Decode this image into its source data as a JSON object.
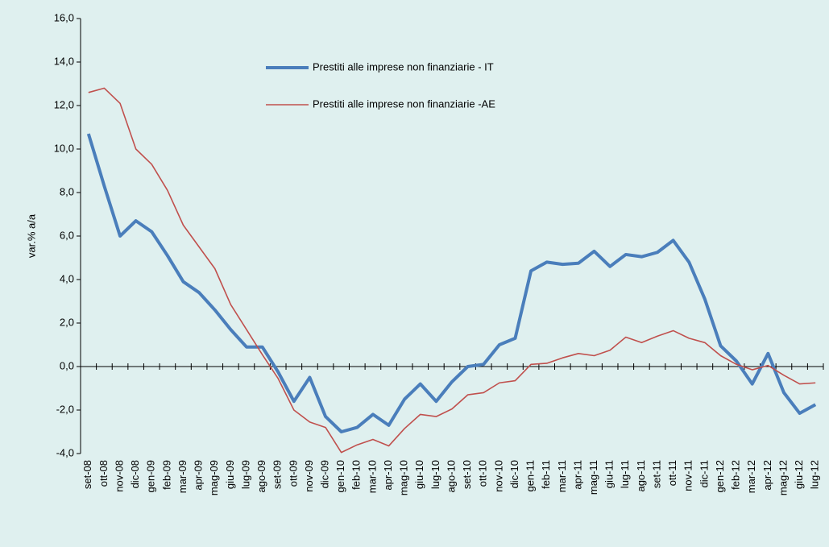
{
  "chart_data": {
    "type": "line",
    "y_label": "var.%  a/a",
    "categories": [
      "set-08",
      "ott-08",
      "nov-08",
      "dic-08",
      "gen-09",
      "feb-09",
      "mar-09",
      "apr-09",
      "mag-09",
      "giu-09",
      "lug-09",
      "ago-09",
      "set-09",
      "ott-09",
      "nov-09",
      "dic-09",
      "gen-10",
      "feb-10",
      "mar-10",
      "apr-10",
      "mag-10",
      "giu-10",
      "lug-10",
      "ago-10",
      "set-10",
      "ott-10",
      "nov-10",
      "dic-10",
      "gen-11",
      "feb-11",
      "mar-11",
      "apr-11",
      "mag-11",
      "giu-11",
      "lug-11",
      "ago-11",
      "set-11",
      "ott-11",
      "nov-11",
      "dic-11",
      "gen-12",
      "feb-12",
      "mar-12",
      "apr-12",
      "mag-12",
      "giu-12",
      "lug-12"
    ],
    "series": [
      {
        "name": "Prestiti alle imprese non finanziarie - IT",
        "color": "#4a7ebb",
        "width": 4,
        "values": [
          10.7,
          8.3,
          6.0,
          6.7,
          6.2,
          5.1,
          3.9,
          3.4,
          2.6,
          1.7,
          0.9,
          0.9,
          -0.25,
          -1.6,
          -0.5,
          -2.3,
          -3.0,
          -2.8,
          -2.2,
          -2.7,
          -1.5,
          -0.8,
          -1.6,
          -0.7,
          0.0,
          0.1,
          1.0,
          1.3,
          4.4,
          4.8,
          4.7,
          4.75,
          5.3,
          4.6,
          5.15,
          5.05,
          5.25,
          5.8,
          4.8,
          3.1,
          0.95,
          0.25,
          -0.8,
          0.6,
          -1.2,
          -2.15,
          -1.75
        ]
      },
      {
        "name": "Prestiti alle imprese non finanziarie -AE",
        "color": "#c0504d",
        "width": 1.6,
        "values": [
          12.6,
          12.8,
          12.1,
          10.0,
          9.3,
          8.1,
          6.5,
          5.5,
          4.5,
          2.85,
          1.7,
          0.55,
          -0.55,
          -2.0,
          -2.55,
          -2.8,
          -3.95,
          -3.6,
          -3.35,
          -3.65,
          -2.85,
          -2.2,
          -2.3,
          -1.95,
          -1.3,
          -1.2,
          -0.75,
          -0.65,
          0.1,
          0.15,
          0.4,
          0.6,
          0.5,
          0.75,
          1.35,
          1.1,
          1.4,
          1.65,
          1.3,
          1.1,
          0.5,
          0.1,
          -0.15,
          0.05,
          -0.4,
          -0.8,
          -0.75
        ]
      }
    ],
    "ylim": [
      -4,
      16
    ],
    "yticks": [
      {
        "value": -4,
        "label": "-4,0"
      },
      {
        "value": -2,
        "label": "-2,0"
      },
      {
        "value": 0,
        "label": "0,0"
      },
      {
        "value": 2,
        "label": "2,0"
      },
      {
        "value": 4,
        "label": "4,0"
      },
      {
        "value": 6,
        "label": "6,0"
      },
      {
        "value": 8,
        "label": "8,0"
      },
      {
        "value": 10,
        "label": "10,0"
      },
      {
        "value": 12,
        "label": "12,0"
      },
      {
        "value": 14,
        "label": "14,0"
      },
      {
        "value": 16,
        "label": "16,0"
      }
    ],
    "grid": false
  }
}
